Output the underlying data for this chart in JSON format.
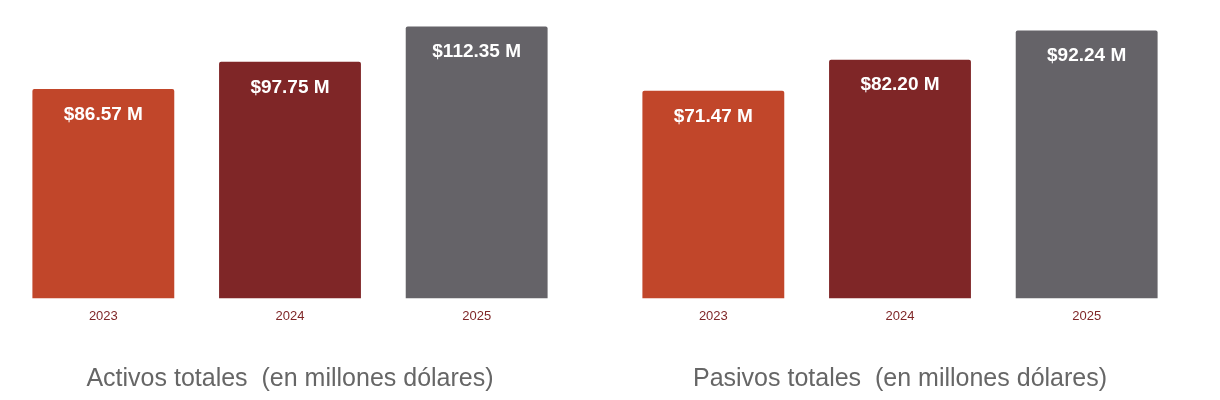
{
  "chart_data": [
    {
      "type": "bar",
      "title": "Activos totales  (en millones dólares)",
      "categories": [
        "2023",
        "2024",
        "2025"
      ],
      "values": [
        86.57,
        97.75,
        112.35
      ],
      "colors": [
        "#c1462a",
        "#7f2627",
        "#656368"
      ],
      "value_labels": [
        "$86.57 M",
        "$97.75 M",
        "$112.35 M"
      ],
      "grid": false,
      "legend": false
    },
    {
      "type": "bar",
      "title": "Pasivos totales  (en millones dólares)",
      "categories": [
        "2023",
        "2024",
        "2025"
      ],
      "values": [
        71.47,
        82.2,
        92.24
      ],
      "colors": [
        "#c1462a",
        "#7f2627",
        "#656368"
      ],
      "value_labels": [
        "$71.47 M",
        "$82.20 M",
        "$92.24 M"
      ],
      "grid": false,
      "legend": false
    }
  ]
}
